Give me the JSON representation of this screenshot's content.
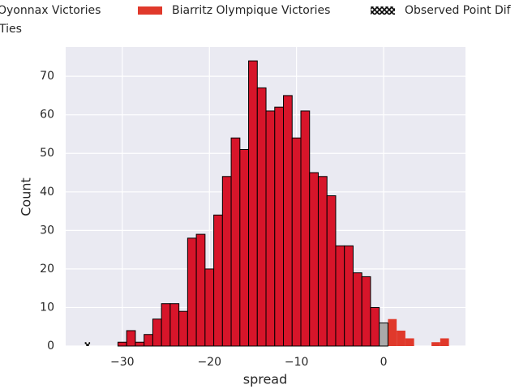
{
  "chart_data": {
    "type": "histogram",
    "xlabel": "spread",
    "ylabel": "Count",
    "xlim": [
      -36.5,
      9.4
    ],
    "ylim": [
      0,
      77.6
    ],
    "xticks": [
      {
        "value": -30,
        "label": "−30"
      },
      {
        "value": -20,
        "label": "−20"
      },
      {
        "value": -10,
        "label": "−10"
      },
      0
    ],
    "yticks": [
      0,
      10,
      20,
      30,
      40,
      50,
      60,
      70
    ],
    "grid": true,
    "series": [
      {
        "name": "Oyonnax Victories",
        "color": "#d7152a",
        "edgecolor": "#000000",
        "bins": [
          -30.5,
          -29.5,
          -28.5,
          -27.5,
          -26.5,
          -25.5,
          -24.5,
          -23.5,
          -22.5,
          -21.5,
          -20.5,
          -19.5,
          -18.5,
          -17.5,
          -16.5,
          -15.5,
          -14.5,
          -13.5,
          -12.5,
          -11.5,
          -10.5,
          -9.5,
          -8.5,
          -7.5,
          -6.5,
          -5.5,
          -4.5,
          -3.5,
          -2.5,
          -1.5,
          -0.5
        ],
        "values": [
          1,
          4,
          1,
          3,
          7,
          11,
          11,
          9,
          28,
          29,
          20,
          34,
          44,
          54,
          51,
          74,
          67,
          61,
          62,
          65,
          54,
          61,
          45,
          44,
          39,
          26,
          26,
          19,
          18,
          10
        ]
      },
      {
        "name": "Biarritz Olympique Victories",
        "color": "#e0392b",
        "edgecolor": null,
        "bins": [
          0.5,
          1.5,
          2.5,
          3.5,
          4.5,
          5.5,
          6.5,
          7.5
        ],
        "values": [
          7,
          4,
          2,
          0,
          0,
          1,
          2
        ]
      },
      {
        "name": "Observed Point Dif",
        "color": "#000000",
        "hatch": true,
        "edgecolor": null,
        "bins": [
          -34.3,
          -33.7
        ],
        "values": [
          1
        ]
      },
      {
        "name": "Ties",
        "color": "#aaaaaa",
        "edgecolor": "#000000",
        "bins": [
          -0.5,
          0.5
        ],
        "values": [
          6
        ]
      }
    ]
  }
}
